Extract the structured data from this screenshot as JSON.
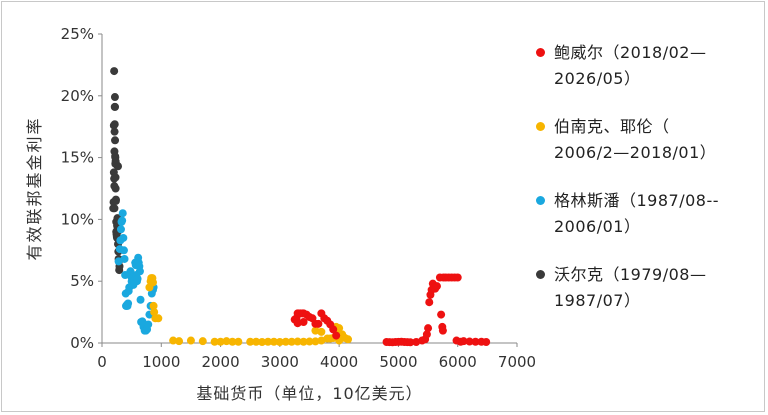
{
  "chart_data": {
    "type": "scatter",
    "title": "",
    "xlabel": "基础货币（单位，10亿美元）",
    "ylabel": "有效联邦基金利率",
    "xlim": [
      0,
      7000
    ],
    "ylim": [
      0,
      25
    ],
    "x_ticks": [
      0,
      1000,
      2000,
      3000,
      4000,
      5000,
      6000,
      7000
    ],
    "x_tick_labels": [
      "0",
      "1000",
      "2000",
      "3000",
      "4000",
      "5000",
      "6000",
      "7000"
    ],
    "y_ticks": [
      0,
      5,
      10,
      15,
      20,
      25
    ],
    "y_tick_labels": [
      "0%",
      "5%",
      "10%",
      "15%",
      "20%",
      "25%"
    ],
    "grid": false,
    "legend_position": "right",
    "series": [
      {
        "name": "沃尔克（1979/08—1987/07）",
        "legend_lines": [
          "沃尔克（1979/08—",
          "1987/07）"
        ],
        "color": "#3a3a3a",
        "points": [
          [
            190,
            10.9
          ],
          [
            195,
            11.4
          ],
          [
            200,
            13.8
          ],
          [
            200,
            17.6
          ],
          [
            205,
            13.3
          ],
          [
            205,
            22.0
          ],
          [
            208,
            12.7
          ],
          [
            210,
            10.9
          ],
          [
            210,
            15.5
          ],
          [
            212,
            17.1
          ],
          [
            215,
            17.7
          ],
          [
            215,
            19.1
          ],
          [
            218,
            19.9
          ],
          [
            220,
            19.1
          ],
          [
            220,
            16.4
          ],
          [
            222,
            15.1
          ],
          [
            225,
            14.5
          ],
          [
            225,
            15.0
          ],
          [
            228,
            13.4
          ],
          [
            230,
            12.5
          ],
          [
            230,
            14.7
          ],
          [
            235,
            11.6
          ],
          [
            235,
            11.5
          ],
          [
            240,
            9.8
          ],
          [
            240,
            9.0
          ],
          [
            245,
            8.8
          ],
          [
            250,
            8.6
          ],
          [
            250,
            14.4
          ],
          [
            255,
            9.5
          ],
          [
            255,
            8.5
          ],
          [
            260,
            10.1
          ],
          [
            260,
            9.4
          ],
          [
            265,
            9.0
          ],
          [
            270,
            8.0
          ],
          [
            270,
            14.3
          ],
          [
            275,
            7.4
          ],
          [
            280,
            6.8
          ],
          [
            285,
            6.6
          ],
          [
            290,
            5.9
          ],
          [
            295,
            6.2
          ]
        ]
      },
      {
        "name": "格林斯潘（1987/08--2006/01）",
        "legend_lines": [
          "格林斯潘（1987/08--",
          "2006/01）"
        ],
        "color": "#1aa8df",
        "points": [
          [
            280,
            6.6
          ],
          [
            300,
            7.6
          ],
          [
            310,
            8.3
          ],
          [
            320,
            9.2
          ],
          [
            330,
            9.8
          ],
          [
            340,
            9.9
          ],
          [
            350,
            10.5
          ],
          [
            360,
            8.5
          ],
          [
            370,
            7.5
          ],
          [
            380,
            6.8
          ],
          [
            390,
            5.5
          ],
          [
            400,
            4.0
          ],
          [
            405,
            3.0
          ],
          [
            410,
            3.0
          ],
          [
            420,
            3.1
          ],
          [
            430,
            3.0
          ],
          [
            440,
            3.2
          ],
          [
            450,
            4.2
          ],
          [
            460,
            4.5
          ],
          [
            470,
            5.5
          ],
          [
            480,
            5.8
          ],
          [
            490,
            5.4
          ],
          [
            500,
            5.0
          ],
          [
            510,
            5.5
          ],
          [
            520,
            5.3
          ],
          [
            530,
            4.7
          ],
          [
            540,
            5.0
          ],
          [
            550,
            5.1
          ],
          [
            560,
            6.5
          ],
          [
            570,
            6.3
          ],
          [
            580,
            5.5
          ],
          [
            590,
            5.0
          ],
          [
            600,
            5.2
          ],
          [
            610,
            6.9
          ],
          [
            620,
            6.5
          ],
          [
            630,
            6.2
          ],
          [
            640,
            5.8
          ],
          [
            650,
            3.5
          ],
          [
            660,
            1.7
          ],
          [
            680,
            1.75
          ],
          [
            700,
            1.3
          ],
          [
            720,
            1.0
          ],
          [
            740,
            1.0
          ],
          [
            760,
            1.1
          ],
          [
            780,
            1.5
          ],
          [
            800,
            2.3
          ],
          [
            820,
            3.0
          ],
          [
            840,
            4.0
          ],
          [
            860,
            4.3
          ],
          [
            870,
            4.5
          ]
        ]
      },
      {
        "name": "伯南克、耶伦（2006/2—2018/01）",
        "legend_lines": [
          "伯南克、耶伦（",
          "2006/2—2018/01）"
        ],
        "color": "#f7b500",
        "points": [
          [
            800,
            4.5
          ],
          [
            820,
            5.0
          ],
          [
            830,
            5.25
          ],
          [
            850,
            5.25
          ],
          [
            860,
            4.9
          ],
          [
            870,
            3.0
          ],
          [
            880,
            2.5
          ],
          [
            900,
            2.0
          ],
          [
            950,
            2.0
          ],
          [
            1200,
            0.2
          ],
          [
            1300,
            0.15
          ],
          [
            1500,
            0.2
          ],
          [
            1700,
            0.15
          ],
          [
            1900,
            0.1
          ],
          [
            2000,
            0.1
          ],
          [
            2100,
            0.15
          ],
          [
            2200,
            0.1
          ],
          [
            2300,
            0.1
          ],
          [
            2500,
            0.1
          ],
          [
            2600,
            0.1
          ],
          [
            2700,
            0.08
          ],
          [
            2800,
            0.1
          ],
          [
            2900,
            0.1
          ],
          [
            3000,
            0.08
          ],
          [
            3100,
            0.1
          ],
          [
            3200,
            0.1
          ],
          [
            3300,
            0.12
          ],
          [
            3400,
            0.1
          ],
          [
            3500,
            0.12
          ],
          [
            3600,
            0.13
          ],
          [
            3700,
            0.2
          ],
          [
            3800,
            0.36
          ],
          [
            3850,
            0.36
          ],
          [
            3900,
            0.4
          ],
          [
            3950,
            0.6
          ],
          [
            3980,
            0.9
          ],
          [
            4000,
            1.2
          ],
          [
            4050,
            0.7
          ],
          [
            4100,
            0.4
          ],
          [
            4150,
            0.3
          ],
          [
            4000,
            0.2
          ],
          [
            3700,
            0.9
          ],
          [
            3600,
            1.0
          ],
          [
            3950,
            1.3
          ]
        ]
      },
      {
        "name": "鲍威尔（2018/02—2026/05）",
        "legend_lines": [
          "鲍威尔（2018/02—",
          "2026/05）"
        ],
        "color": "#ee1111",
        "points": [
          [
            3250,
            1.9
          ],
          [
            3280,
            2.0
          ],
          [
            3300,
            2.4
          ],
          [
            3320,
            2.4
          ],
          [
            3350,
            2.4
          ],
          [
            3380,
            2.4
          ],
          [
            3400,
            2.4
          ],
          [
            3450,
            2.3
          ],
          [
            3500,
            2.1
          ],
          [
            3550,
            2.0
          ],
          [
            3600,
            1.55
          ],
          [
            3650,
            1.55
          ],
          [
            3700,
            2.4
          ],
          [
            3750,
            2.0
          ],
          [
            3800,
            1.8
          ],
          [
            3850,
            1.5
          ],
          [
            3900,
            1.1
          ],
          [
            3950,
            0.6
          ],
          [
            3300,
            1.6
          ],
          [
            3400,
            1.7
          ],
          [
            4800,
            0.08
          ],
          [
            4850,
            0.07
          ],
          [
            4900,
            0.06
          ],
          [
            4950,
            0.08
          ],
          [
            5000,
            0.09
          ],
          [
            5050,
            0.1
          ],
          [
            5100,
            0.08
          ],
          [
            5150,
            0.07
          ],
          [
            5200,
            0.06
          ],
          [
            5300,
            0.08
          ],
          [
            5400,
            0.2
          ],
          [
            5450,
            0.3
          ],
          [
            5480,
            0.7
          ],
          [
            5500,
            1.2
          ],
          [
            5520,
            3.3
          ],
          [
            5540,
            3.9
          ],
          [
            5560,
            4.3
          ],
          [
            5580,
            4.8
          ],
          [
            5600,
            4.5
          ],
          [
            5620,
            4.4
          ],
          [
            5650,
            4.6
          ],
          [
            5700,
            5.3
          ],
          [
            5720,
            2.3
          ],
          [
            5740,
            1.3
          ],
          [
            5750,
            1.0
          ],
          [
            5760,
            5.3
          ],
          [
            5800,
            5.3
          ],
          [
            5850,
            5.3
          ],
          [
            5900,
            5.3
          ],
          [
            5950,
            5.3
          ],
          [
            6000,
            5.3
          ],
          [
            5980,
            0.2
          ],
          [
            6050,
            0.1
          ],
          [
            6100,
            0.15
          ],
          [
            6200,
            0.12
          ],
          [
            6300,
            0.1
          ],
          [
            6400,
            0.1
          ],
          [
            6480,
            0.08
          ]
        ]
      }
    ]
  }
}
